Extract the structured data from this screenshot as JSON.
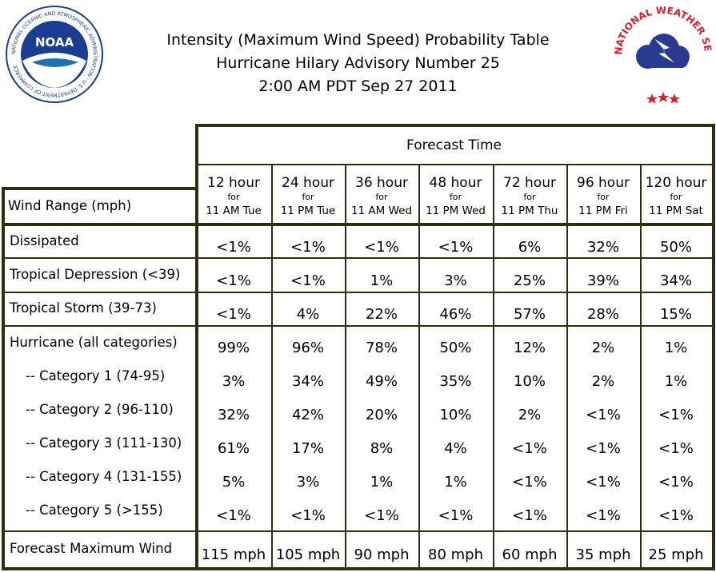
{
  "title_lines": [
    "Intensity (Maximum Wind Speed) Probability Table",
    "Hurricane Hilary Advisory Number 25",
    "2:00 AM PDT Sep 27 2011"
  ],
  "logos": {
    "noaa": {
      "text": "NOAA",
      "ring_text": "NATIONAL OCEANIC AND ATMOSPHERIC ADMINISTRATION · U.S. DEPARTMENT OF COMMERCE"
    },
    "nws": {
      "ring_text": "NATIONAL WEATHER SERVICE"
    }
  },
  "colors": {
    "grid": "#2f2e10",
    "noaa_blue": "#1a3d8f",
    "nws_red": "#d7202e",
    "nws_cloud": "#2a3b8f"
  },
  "chart_data": {
    "type": "table",
    "header_group": "Forecast Time",
    "row_header": "Wind Range (mph)",
    "columns": [
      {
        "hours": "12 hour",
        "for": "for",
        "when": "11 AM Tue"
      },
      {
        "hours": "24 hour",
        "for": "for",
        "when": "11 PM Tue"
      },
      {
        "hours": "36 hour",
        "for": "for",
        "when": "11 AM Wed"
      },
      {
        "hours": "48 hour",
        "for": "for",
        "when": "11 PM Wed"
      },
      {
        "hours": "72 hour",
        "for": "for",
        "when": "11 PM Thu"
      },
      {
        "hours": "96 hour",
        "for": "for",
        "when": "11 PM Fri"
      },
      {
        "hours": "120 hour",
        "for": "for",
        "when": "11 PM Sat"
      }
    ],
    "rows": [
      {
        "label": "Dissipated",
        "values": [
          "<1%",
          "<1%",
          "<1%",
          "<1%",
          "6%",
          "32%",
          "50%"
        ]
      },
      {
        "label": "Tropical Depression (<39)",
        "values": [
          "<1%",
          "<1%",
          "1%",
          "3%",
          "25%",
          "39%",
          "34%"
        ]
      },
      {
        "label": "Tropical Storm (39-73)",
        "values": [
          "<1%",
          "4%",
          "22%",
          "46%",
          "57%",
          "28%",
          "15%"
        ]
      },
      {
        "label": "Hurricane (all categories)",
        "values": [
          "99%",
          "96%",
          "78%",
          "50%",
          "12%",
          "2%",
          "1%"
        ]
      },
      {
        "label": "-- Category 1 (74-95)",
        "values": [
          "3%",
          "34%",
          "49%",
          "35%",
          "10%",
          "2%",
          "1%"
        ]
      },
      {
        "label": "-- Category 2 (96-110)",
        "values": [
          "32%",
          "42%",
          "20%",
          "10%",
          "2%",
          "<1%",
          "<1%"
        ]
      },
      {
        "label": "-- Category 3 (111-130)",
        "values": [
          "61%",
          "17%",
          "8%",
          "4%",
          "<1%",
          "<1%",
          "<1%"
        ]
      },
      {
        "label": "-- Category 4 (131-155)",
        "values": [
          "5%",
          "3%",
          "1%",
          "1%",
          "<1%",
          "<1%",
          "<1%"
        ]
      },
      {
        "label": "-- Category 5 (>155)",
        "values": [
          "<1%",
          "<1%",
          "<1%",
          "<1%",
          "<1%",
          "<1%",
          "<1%"
        ]
      },
      {
        "label": "Forecast Maximum Wind",
        "values": [
          "115 mph",
          "105 mph",
          "90 mph",
          "80 mph",
          "60 mph",
          "35 mph",
          "25 mph"
        ]
      }
    ]
  }
}
